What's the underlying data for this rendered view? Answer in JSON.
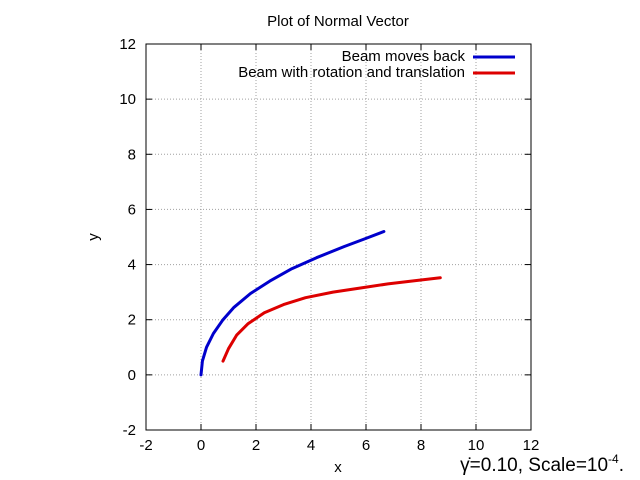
{
  "chart_data": {
    "type": "line",
    "title": "Plot of Normal Vector",
    "xlabel": "x",
    "ylabel": "y",
    "xlim": [
      -2,
      12
    ],
    "ylim": [
      -2,
      12
    ],
    "xticks": [
      -2,
      0,
      2,
      4,
      6,
      8,
      10,
      12
    ],
    "yticks": [
      -2,
      0,
      2,
      4,
      6,
      8,
      10,
      12
    ],
    "x_tick_labels": [
      "-2",
      "0",
      "2",
      "4",
      "6",
      "8",
      "10",
      "12"
    ],
    "y_tick_labels": [
      "-2",
      "0",
      "2",
      "4",
      "6",
      "8",
      "10",
      "12"
    ],
    "grid": true,
    "legend_position": "top-right",
    "series": [
      {
        "name": "Beam moves back",
        "color": "#0000cc",
        "x": [
          0.0,
          0.05,
          0.2,
          0.45,
          0.8,
          1.2,
          1.8,
          2.5,
          3.3,
          4.2,
          5.2,
          6.0,
          6.65
        ],
        "y": [
          0.0,
          0.5,
          1.0,
          1.5,
          2.0,
          2.45,
          2.95,
          3.4,
          3.85,
          4.25,
          4.65,
          4.95,
          5.2
        ]
      },
      {
        "name": "Beam with rotation and translation",
        "color": "#dd0000",
        "x": [
          0.8,
          1.0,
          1.3,
          1.7,
          2.3,
          3.0,
          3.8,
          4.8,
          5.8,
          6.8,
          7.8,
          8.7
        ],
        "y": [
          0.5,
          0.95,
          1.45,
          1.85,
          2.25,
          2.55,
          2.8,
          3.0,
          3.15,
          3.3,
          3.42,
          3.52
        ]
      }
    ],
    "annotation": {
      "prefix": "γ̇=0.10, Scale=10",
      "exponent": "-4",
      "suffix": "."
    }
  }
}
